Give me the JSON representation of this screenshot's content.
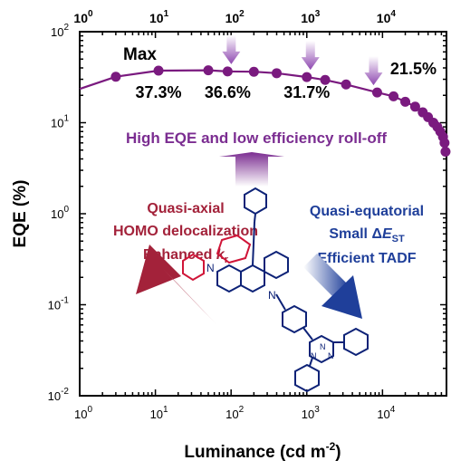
{
  "chart_data": {
    "type": "scatter",
    "xscale": "log",
    "yscale": "log",
    "xlim": [
      1,
      70000
    ],
    "ylim": [
      0.01,
      100
    ],
    "xlabel": "Luminance (cd m",
    "xlabel_sup": "-2",
    "xlabel_close": ")",
    "ylabel": "EQE (%)",
    "x_ticks": [
      {
        "value": 1,
        "base": "10",
        "exp": "0"
      },
      {
        "value": 10,
        "base": "10",
        "exp": "1"
      },
      {
        "value": 100,
        "base": "10",
        "exp": "2"
      },
      {
        "value": 1000,
        "base": "10",
        "exp": "3"
      },
      {
        "value": 10000,
        "base": "10",
        "exp": "4"
      }
    ],
    "y_ticks": [
      {
        "value": 0.01,
        "base": "10",
        "exp": "-2"
      },
      {
        "value": 0.1,
        "base": "10",
        "exp": "-1"
      },
      {
        "value": 1,
        "base": "10",
        "exp": "0"
      },
      {
        "value": 10,
        "base": "10",
        "exp": "1"
      },
      {
        "value": 100,
        "base": "10",
        "exp": "2"
      }
    ],
    "series": [
      {
        "color": "#7a1a7f",
        "marker": "circle",
        "x": [
          1,
          3,
          11,
          50,
          90,
          200,
          400,
          1000,
          1750,
          3300,
          8500,
          14000,
          20000,
          27000,
          34000,
          40000,
          47000,
          53000,
          58000,
          63000,
          66000,
          68000
        ],
        "y": [
          23.5,
          32,
          37.3,
          37.7,
          36.6,
          36.3,
          35,
          31.7,
          29.5,
          26.3,
          21.5,
          19.5,
          17,
          15,
          13,
          11.5,
          10,
          9,
          8,
          7,
          6,
          4.8
        ]
      }
    ],
    "annotations": {
      "max_label": "Max",
      "values": [
        {
          "text": "37.3%",
          "x": 11
        },
        {
          "text": "36.6%",
          "x": 90
        },
        {
          "text": "31.7%",
          "x": 1000
        },
        {
          "text": "21.5%",
          "x": 8500
        }
      ],
      "headline": "High EQE and low efficiency roll-off",
      "left_lines": [
        "Quasi-axial",
        "HOMO delocalization"
      ],
      "left_kr": {
        "text": "Enhanced ",
        "k": "k",
        "sub": "r"
      },
      "right_lines": [
        "Quasi-equatorial"
      ],
      "right_dest": {
        "text": "Small Δ",
        "E": "E",
        "sub": "ST"
      },
      "right_tadf": "Efficient TADF"
    },
    "colors": {
      "data": "#7a1a7f",
      "purple_text": "#7b2d91",
      "red": "#a3223a",
      "blue": "#1f3f9a",
      "molecule_dark": "#0d2277",
      "molecule_red": "#d01538"
    }
  }
}
